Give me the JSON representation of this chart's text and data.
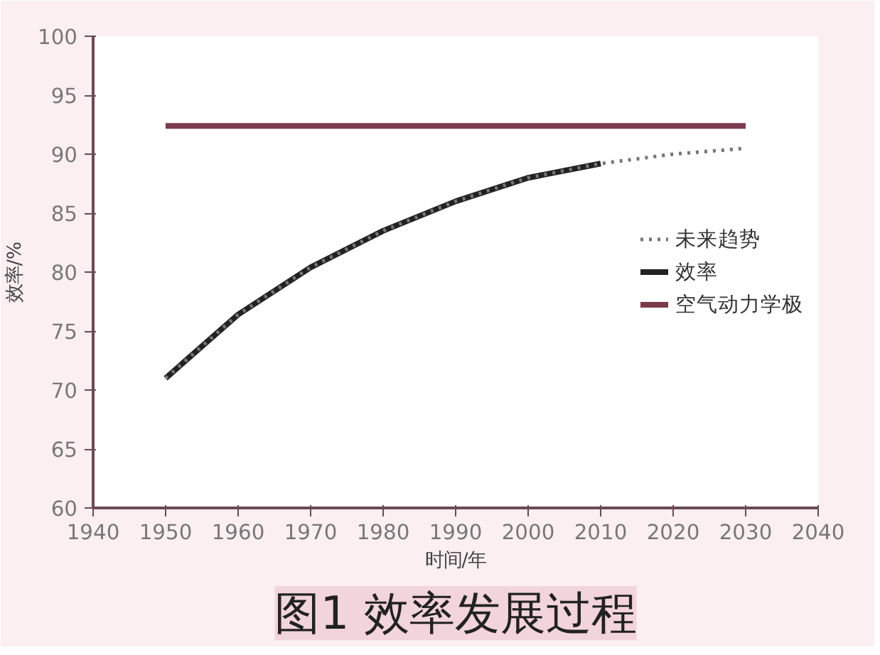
{
  "chart_data": {
    "type": "line",
    "title": "图1 效率发展过程",
    "xlabel": "时间/年",
    "ylabel": "效率/%",
    "xlim": [
      1940,
      2040
    ],
    "xticks": [
      1940,
      1950,
      1960,
      1970,
      1980,
      1990,
      2000,
      2010,
      2020,
      2030,
      2040
    ],
    "ylim": [
      60,
      100
    ],
    "yticks": [
      60,
      65,
      70,
      75,
      80,
      85,
      90,
      95,
      100
    ],
    "grid": false,
    "legend": "right",
    "marker": "none",
    "series": [
      {
        "name": "未来趋势",
        "color": "#777777",
        "line_style": "dotted",
        "x": [
          1950,
          1960,
          1970,
          1980,
          1990,
          2000,
          2010,
          2020,
          2030
        ],
        "values": [
          71,
          76.4,
          80.4,
          83.5,
          86,
          88,
          89.2,
          90,
          90.5
        ]
      },
      {
        "name": "效率",
        "color": "#222222",
        "line_style": "solid",
        "x": [
          1950,
          1960,
          1970,
          1980,
          1990,
          2000,
          2010
        ],
        "values": [
          71,
          76.4,
          80.4,
          83.5,
          86,
          88,
          89.2
        ]
      },
      {
        "name": "空气动力学极",
        "color": "#7a3a4a",
        "line_style": "solid",
        "x": [
          1950,
          2030
        ],
        "values": [
          92.4,
          92.4
        ]
      }
    ]
  }
}
